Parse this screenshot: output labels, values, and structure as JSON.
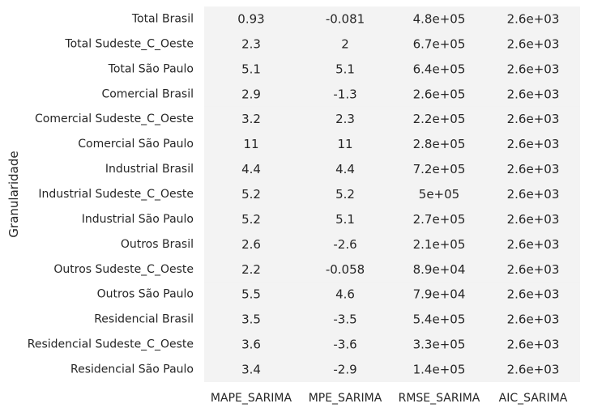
{
  "chart_data": {
    "type": "heatmap",
    "title": "",
    "xlabel": "",
    "ylabel": "Granularidade",
    "columns": [
      "MAPE_SARIMA",
      "MPE_SARIMA",
      "RMSE_SARIMA",
      "AIC_SARIMA"
    ],
    "rows": [
      "Total Brasil",
      "Total Sudeste_C_Oeste",
      "Total São Paulo",
      "Comercial Brasil",
      "Comercial Sudeste_C_Oeste",
      "Comercial São Paulo",
      "Industrial Brasil",
      "Industrial Sudeste_C_Oeste",
      "Industrial São Paulo",
      "Outros Brasil",
      "Outros Sudeste_C_Oeste",
      "Outros São Paulo",
      "Residencial Brasil",
      "Residencial Sudeste_C_Oeste",
      "Residencial São Paulo"
    ],
    "cells": [
      [
        "0.93",
        "-0.081",
        "4.8e+05",
        "2.6e+03"
      ],
      [
        "2.3",
        "2",
        "6.7e+05",
        "2.6e+03"
      ],
      [
        "5.1",
        "5.1",
        "6.4e+05",
        "2.6e+03"
      ],
      [
        "2.9",
        "-1.3",
        "2.6e+05",
        "2.6e+03"
      ],
      [
        "3.2",
        "2.3",
        "2.2e+05",
        "2.6e+03"
      ],
      [
        "11",
        "11",
        "2.8e+05",
        "2.6e+03"
      ],
      [
        "4.4",
        "4.4",
        "7.2e+05",
        "2.6e+03"
      ],
      [
        "5.2",
        "5.2",
        "5e+05",
        "2.6e+03"
      ],
      [
        "5.2",
        "5.1",
        "2.7e+05",
        "2.6e+03"
      ],
      [
        "2.6",
        "-2.6",
        "2.1e+05",
        "2.6e+03"
      ],
      [
        "2.2",
        "-0.058",
        "8.9e+04",
        "2.6e+03"
      ],
      [
        "5.5",
        "4.6",
        "7.9e+04",
        "2.6e+03"
      ],
      [
        "3.5",
        "-3.5",
        "5.4e+05",
        "2.6e+03"
      ],
      [
        "3.6",
        "-3.6",
        "3.3e+05",
        "2.6e+03"
      ],
      [
        "3.4",
        "-2.9",
        "1.4e+05",
        "2.6e+03"
      ]
    ],
    "grid": false,
    "cell_color": "#f3f3f3",
    "colorbar": false
  }
}
